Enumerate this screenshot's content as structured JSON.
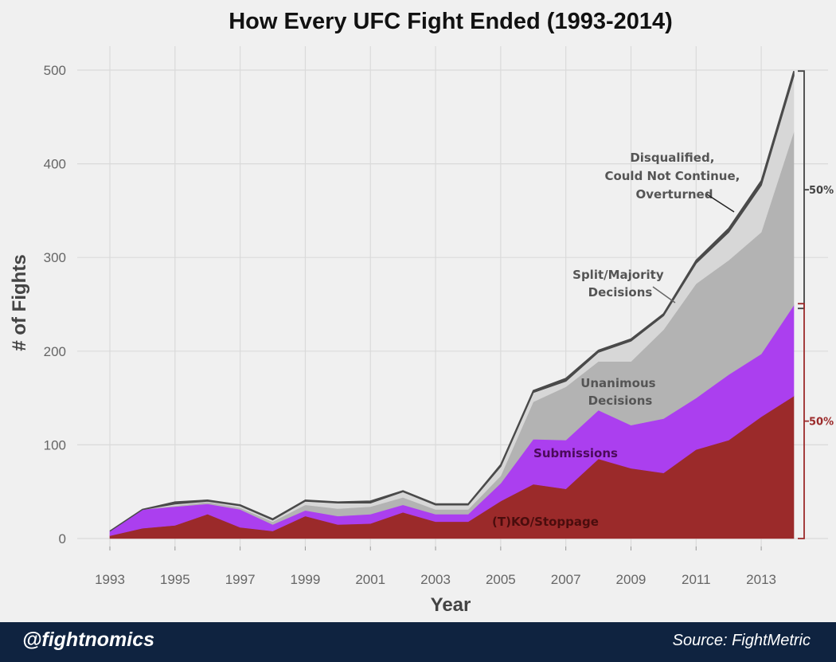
{
  "chart_data": {
    "type": "area",
    "title": "How Every UFC Fight Ended (1993-2014)",
    "xlabel": "Year",
    "ylabel": "# of Fights",
    "x": [
      1993,
      1994,
      1995,
      1996,
      1997,
      1998,
      1999,
      2000,
      2001,
      2002,
      2003,
      2004,
      2005,
      2006,
      2007,
      2008,
      2009,
      2010,
      2011,
      2012,
      2013,
      2014
    ],
    "xticks": [
      "1993",
      "1995",
      "1997",
      "1999",
      "2001",
      "2003",
      "2005",
      "2007",
      "2009",
      "2011",
      "2013"
    ],
    "ylim": [
      0,
      520
    ],
    "yticks": [
      0,
      100,
      200,
      300,
      400,
      500
    ],
    "stacked": true,
    "grid": true,
    "series": [
      {
        "name": "(T)KO/Stoppage",
        "color": "#9b2a2a",
        "values": [
          3,
          11,
          14,
          26,
          12,
          8,
          24,
          15,
          16,
          28,
          18,
          18,
          40,
          58,
          53,
          85,
          75,
          70,
          95,
          105,
          130,
          152
        ]
      },
      {
        "name": "Submissions",
        "color": "#ab3fef",
        "values": [
          5,
          20,
          20,
          11,
          19,
          7,
          6,
          9,
          10,
          8,
          8,
          8,
          19,
          48,
          52,
          52,
          46,
          58,
          55,
          70,
          67,
          97
        ]
      },
      {
        "name": "Unanimous Decisions",
        "color": "#b3b3b3",
        "values": [
          0,
          0,
          1,
          2,
          2,
          3,
          6,
          8,
          8,
          8,
          5,
          5,
          8,
          40,
          57,
          52,
          68,
          95,
          122,
          122,
          130,
          185
        ]
      },
      {
        "name": "Split/Majority Decisions",
        "color": "#d7d7d7",
        "values": [
          0,
          0,
          2,
          1,
          2,
          2,
          4,
          6,
          4,
          6,
          5,
          5,
          10,
          10,
          6,
          10,
          22,
          15,
          22,
          30,
          50,
          60
        ]
      },
      {
        "name": "Disqualified, Could Not Continue, Overturned",
        "color": "#4a4a4a",
        "values": [
          0,
          0,
          2,
          1,
          1,
          1,
          1,
          1,
          2,
          1,
          1,
          1,
          2,
          2,
          3,
          2,
          2,
          2,
          3,
          4,
          5,
          5
        ]
      }
    ],
    "annotations": {
      "ko": "(T)KO/Stoppage",
      "sub": "Submissions",
      "unan": [
        "Unanimous",
        "Decisions"
      ],
      "split": [
        "Split/Majority",
        "Decisions"
      ],
      "dq": [
        "Disqualified,",
        "Could Not Continue,",
        "Overturned"
      ],
      "pct_top": "50%",
      "pct_bottom": "50%",
      "pct_top_color": "#444444",
      "pct_bottom_color": "#9b2a2a"
    }
  },
  "footer": {
    "handle": "@fightnomics",
    "source": "Source: FightMetric"
  }
}
